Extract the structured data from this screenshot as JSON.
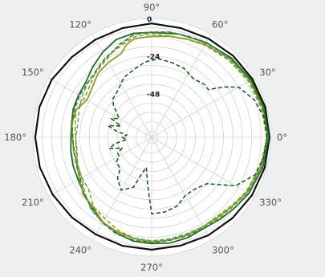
{
  "chart_data": {
    "type": "line",
    "subtype": "polar",
    "title": "",
    "angle_unit": "degrees",
    "angle_ticks": [
      0,
      30,
      60,
      90,
      120,
      150,
      180,
      210,
      240,
      270,
      300,
      330
    ],
    "angle_tick_labels": [
      "0°",
      "30°",
      "60°",
      "90°",
      "120°",
      "150°",
      "180°",
      "210°",
      "240°",
      "270°",
      "300°",
      "330°"
    ],
    "radial_ticks": [
      0,
      -24,
      -48
    ],
    "radial_tick_labels": [
      "0",
      "-24",
      "-48"
    ],
    "radial_range": [
      -76,
      0
    ],
    "radial_grid_step": 6,
    "grid": true,
    "legend": "none",
    "series": [
      {
        "color": "#111111",
        "dash": "solid",
        "width": 2.2,
        "points": [
          [
            0,
            -0.6
          ],
          [
            15,
            -0.8
          ],
          [
            30,
            -1.5
          ],
          [
            45,
            -2.3
          ],
          [
            60,
            -3.2
          ],
          [
            75,
            -3.7
          ],
          [
            90,
            -3.2
          ],
          [
            105,
            -3.7
          ],
          [
            120,
            -3.9
          ],
          [
            135,
            -3.6
          ],
          [
            150,
            -2.2
          ],
          [
            165,
            -1.6
          ],
          [
            180,
            -1.5
          ],
          [
            195,
            -1.9
          ],
          [
            210,
            -2.8
          ],
          [
            225,
            -3.7
          ],
          [
            240,
            -4.3
          ],
          [
            255,
            -4.1
          ],
          [
            270,
            -4.1
          ],
          [
            285,
            -4.3
          ],
          [
            300,
            -3.6
          ],
          [
            315,
            -2.9
          ],
          [
            330,
            -1.9
          ],
          [
            345,
            -1.1
          ],
          [
            360,
            -0.6
          ]
        ]
      },
      {
        "color": "#1e6b22",
        "dash": "solid",
        "width": 1.8,
        "points": [
          [
            0,
            -1.2
          ],
          [
            15,
            -1.7
          ],
          [
            30,
            -2.6
          ],
          [
            45,
            -4.1
          ],
          [
            60,
            -6.1
          ],
          [
            75,
            -7.7
          ],
          [
            90,
            -8.9
          ],
          [
            100,
            -8.5
          ],
          [
            110,
            -9.5
          ],
          [
            120,
            -13.2
          ],
          [
            130,
            -17.3
          ],
          [
            140,
            -21.0
          ],
          [
            150,
            -22.0
          ],
          [
            160,
            -22.6
          ],
          [
            170,
            -24.0
          ],
          [
            180,
            -24.4
          ],
          [
            190,
            -23.5
          ],
          [
            200,
            -22.5
          ],
          [
            210,
            -21.7
          ],
          [
            220,
            -19.5
          ],
          [
            230,
            -17.0
          ],
          [
            240,
            -13.4
          ],
          [
            250,
            -10.7
          ],
          [
            260,
            -8.6
          ],
          [
            270,
            -8.0
          ],
          [
            280,
            -7.4
          ],
          [
            290,
            -7.8
          ],
          [
            300,
            -8.9
          ],
          [
            310,
            -7.7
          ],
          [
            320,
            -6.2
          ],
          [
            330,
            -4.2
          ],
          [
            345,
            -2.3
          ],
          [
            360,
            -1.2
          ]
        ]
      },
      {
        "color": "#949a22",
        "dash": "solid",
        "width": 1.8,
        "points": [
          [
            0,
            -1.8
          ],
          [
            15,
            -2.6
          ],
          [
            30,
            -3.4
          ],
          [
            45,
            -5.1
          ],
          [
            60,
            -7.5
          ],
          [
            70,
            -9.2
          ],
          [
            80,
            -10.4
          ],
          [
            90,
            -11.4
          ],
          [
            100,
            -12.0
          ],
          [
            105,
            -14.5
          ],
          [
            110,
            -19.0
          ],
          [
            120,
            -20.7
          ],
          [
            130,
            -22.6
          ],
          [
            140,
            -26.4
          ],
          [
            150,
            -28.2
          ],
          [
            160,
            -24.6
          ],
          [
            170,
            -24.2
          ],
          [
            180,
            -25.3
          ],
          [
            190,
            -25.3
          ],
          [
            200,
            -25.1
          ],
          [
            210,
            -22.7
          ],
          [
            220,
            -18.9
          ],
          [
            230,
            -17.8
          ],
          [
            240,
            -13.4
          ],
          [
            250,
            -11.7
          ],
          [
            260,
            -10.3
          ],
          [
            270,
            -9.0
          ],
          [
            280,
            -9.2
          ],
          [
            290,
            -9.5
          ],
          [
            300,
            -10.1
          ],
          [
            310,
            -9.6
          ],
          [
            320,
            -8.1
          ],
          [
            330,
            -5.6
          ],
          [
            345,
            -3.4
          ],
          [
            360,
            -1.8
          ]
        ]
      },
      {
        "color": "#8aa02a",
        "dash": "dashed",
        "width": 1.6,
        "points": [
          [
            0,
            -2.3
          ],
          [
            15,
            -3.4
          ],
          [
            30,
            -4.4
          ],
          [
            45,
            -6.2
          ],
          [
            60,
            -8.0
          ],
          [
            70,
            -9.4
          ],
          [
            80,
            -10.3
          ],
          [
            90,
            -9.8
          ],
          [
            100,
            -10.8
          ],
          [
            110,
            -14.8
          ],
          [
            120,
            -16.8
          ],
          [
            130,
            -20.5
          ],
          [
            140,
            -24.5
          ],
          [
            150,
            -26.3
          ],
          [
            160,
            -24.6
          ],
          [
            170,
            -26.3
          ],
          [
            180,
            -27.2
          ],
          [
            190,
            -27.5
          ],
          [
            200,
            -25.5
          ],
          [
            210,
            -24.4
          ],
          [
            220,
            -23.5
          ],
          [
            230,
            -18.2
          ],
          [
            240,
            -16.0
          ],
          [
            250,
            -12.8
          ],
          [
            260,
            -10.5
          ],
          [
            270,
            -9.8
          ],
          [
            280,
            -9.8
          ],
          [
            290,
            -10.1
          ],
          [
            300,
            -10.0
          ],
          [
            310,
            -10.4
          ],
          [
            320,
            -8.6
          ],
          [
            330,
            -6.3
          ],
          [
            345,
            -4.0
          ],
          [
            360,
            -2.3
          ]
        ]
      },
      {
        "color": "#5fa35f",
        "dash": "dashed",
        "width": 1.5,
        "points": [
          [
            0,
            -2.1
          ],
          [
            15,
            -3.0
          ],
          [
            30,
            -4.3
          ],
          [
            45,
            -6.0
          ],
          [
            60,
            -6.8
          ],
          [
            70,
            -7.5
          ],
          [
            80,
            -7.5
          ],
          [
            90,
            -8.6
          ],
          [
            100,
            -9.2
          ],
          [
            110,
            -13.3
          ],
          [
            120,
            -18.4
          ],
          [
            130,
            -21.2
          ],
          [
            140,
            -22.1
          ],
          [
            150,
            -24.5
          ],
          [
            160,
            -26.5
          ],
          [
            170,
            -28.0
          ],
          [
            180,
            -27.4
          ],
          [
            190,
            -27.0
          ],
          [
            200,
            -25.5
          ],
          [
            210,
            -24.3
          ],
          [
            220,
            -20.4
          ],
          [
            230,
            -15.5
          ],
          [
            240,
            -13.2
          ],
          [
            250,
            -10.8
          ],
          [
            260,
            -10.5
          ],
          [
            270,
            -9.7
          ],
          [
            280,
            -10.1
          ],
          [
            290,
            -10.4
          ],
          [
            300,
            -10.0
          ],
          [
            310,
            -8.8
          ],
          [
            320,
            -7.5
          ],
          [
            330,
            -5.4
          ],
          [
            345,
            -3.1
          ],
          [
            360,
            -2.1
          ]
        ]
      },
      {
        "color": "#3b7d3b",
        "dash": "dashed",
        "width": 1.5,
        "points": [
          [
            0,
            -1.5
          ],
          [
            15,
            -2.2
          ],
          [
            30,
            -3.0
          ],
          [
            45,
            -4.6
          ],
          [
            60,
            -6.0
          ],
          [
            70,
            -7.2
          ],
          [
            80,
            -7.8
          ],
          [
            90,
            -8.9
          ],
          [
            100,
            -9.4
          ],
          [
            110,
            -14.0
          ],
          [
            120,
            -17.6
          ],
          [
            130,
            -20.5
          ],
          [
            140,
            -22.4
          ],
          [
            150,
            -22.7
          ],
          [
            160,
            -23.5
          ],
          [
            170,
            -24.3
          ],
          [
            180,
            -25.5
          ],
          [
            190,
            -25.8
          ],
          [
            200,
            -24.7
          ],
          [
            210,
            -23.4
          ],
          [
            220,
            -19.5
          ],
          [
            230,
            -16.3
          ],
          [
            240,
            -13.0
          ],
          [
            250,
            -10.1
          ],
          [
            260,
            -9.2
          ],
          [
            270,
            -8.6
          ],
          [
            280,
            -9.1
          ],
          [
            290,
            -9.0
          ],
          [
            300,
            -9.2
          ],
          [
            310,
            -8.0
          ],
          [
            320,
            -6.0
          ],
          [
            330,
            -4.6
          ],
          [
            345,
            -2.6
          ],
          [
            360,
            -1.5
          ]
        ]
      },
      {
        "color": "#1a5e22",
        "dash": "dashed",
        "width": 1.6,
        "points": [
          [
            0,
            -2.2
          ],
          [
            10,
            -3.0
          ],
          [
            20,
            -6.0
          ],
          [
            30,
            -11.8
          ],
          [
            35,
            -19.9
          ],
          [
            40,
            -28.6
          ],
          [
            45,
            -28.2
          ],
          [
            55,
            -29.9
          ],
          [
            65,
            -27.3
          ],
          [
            75,
            -26.5
          ],
          [
            85,
            -25.6
          ],
          [
            95,
            -27.6
          ],
          [
            105,
            -31.3
          ],
          [
            115,
            -33.8
          ],
          [
            125,
            -38.8
          ],
          [
            135,
            -41.0
          ],
          [
            140,
            -44.0
          ],
          [
            150,
            -52.0
          ],
          [
            155,
            -47.5
          ],
          [
            160,
            -55.0
          ],
          [
            165,
            -47.0
          ],
          [
            170,
            -53.0
          ],
          [
            175,
            -60.0
          ],
          [
            180,
            -57.0
          ],
          [
            185,
            -60.0
          ],
          [
            190,
            -52.0
          ],
          [
            195,
            -48.0
          ],
          [
            200,
            -56.0
          ],
          [
            205,
            -52.0
          ],
          [
            210,
            -52.0
          ],
          [
            215,
            -48.5
          ],
          [
            225,
            -47.5
          ],
          [
            230,
            -42.0
          ],
          [
            240,
            -37.0
          ],
          [
            250,
            -42.0
          ],
          [
            255,
            -52.0
          ],
          [
            260,
            -56.5
          ],
          [
            265,
            -46.0
          ],
          [
            270,
            -27.0
          ],
          [
            280,
            -27.5
          ],
          [
            290,
            -29.0
          ],
          [
            300,
            -33.0
          ],
          [
            310,
            -32.8
          ],
          [
            320,
            -29.8
          ],
          [
            330,
            -14.0
          ],
          [
            340,
            -5.6
          ],
          [
            350,
            -3.2
          ],
          [
            360,
            -2.2
          ]
        ]
      }
    ]
  }
}
